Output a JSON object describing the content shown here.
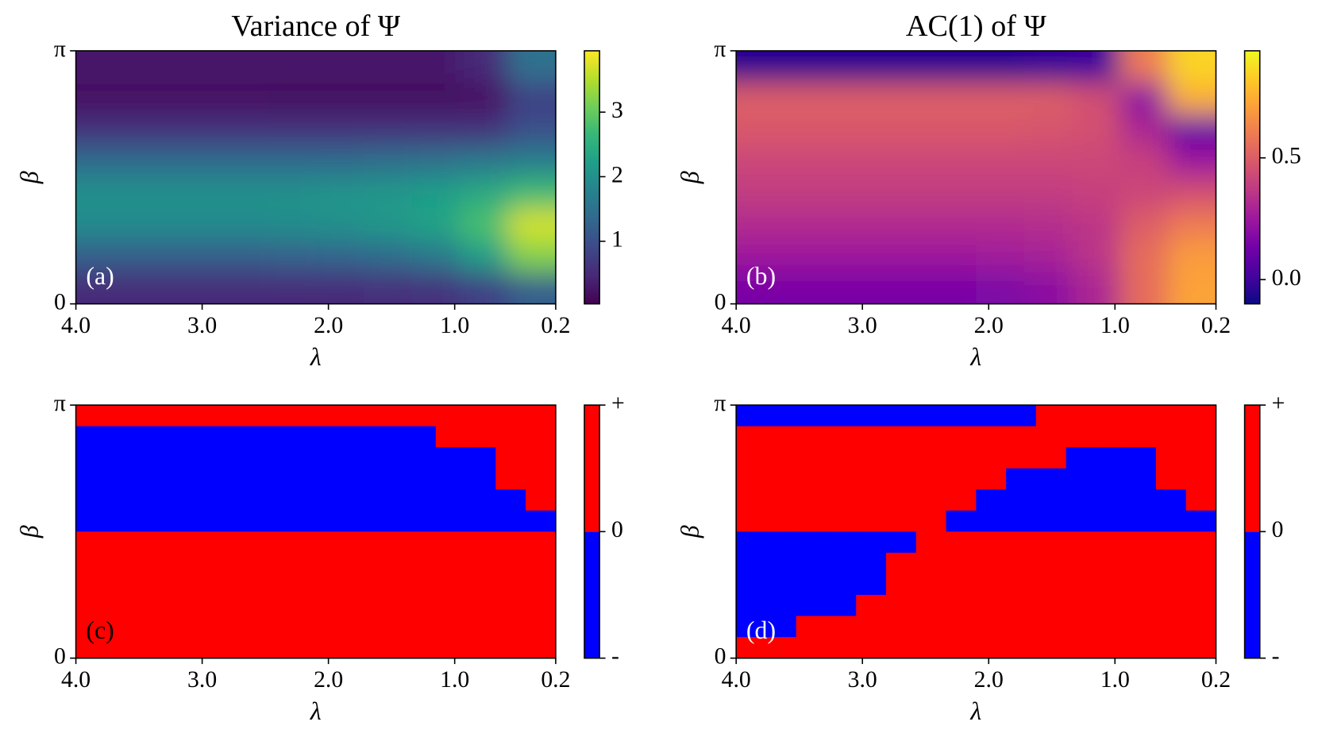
{
  "chart_data": [
    {
      "type": "heatmap",
      "title": "Variance of Ψ",
      "panel_label": "(a)",
      "label_color": "#ffffff",
      "xlabel": "λ",
      "ylabel": "β",
      "xlim": [
        4,
        0.2
      ],
      "xticks": [
        {
          "value": 4,
          "label": "4.0"
        },
        {
          "value": 3,
          "label": "3.0"
        },
        {
          "value": 2,
          "label": "2.0"
        },
        {
          "value": 1,
          "label": "1.0"
        },
        0.2
      ],
      "ylim": [
        0,
        3.14159
      ],
      "yticks": [
        0,
        {
          "value": 3.14159,
          "label": "π"
        }
      ],
      "colors": [
        "#440154",
        "#482878",
        "#3e4989",
        "#31688e",
        "#26828e",
        "#1f9e89",
        "#35b779",
        "#6ece58",
        "#b5de2b",
        "#fde725"
      ],
      "smooth": true,
      "clim": [
        0.03,
        3.95
      ],
      "cticks": [
        1,
        2,
        3
      ],
      "z": [
        [
          0.3,
          0.3,
          0.3,
          0.3,
          0.3,
          0.3,
          0.3,
          0.3,
          0.5,
          1.5
        ],
        [
          0.2,
          0.2,
          0.2,
          0.2,
          0.15,
          0.15,
          0.15,
          0.15,
          0.2,
          0.8
        ],
        [
          0.6,
          0.6,
          0.6,
          0.6,
          0.6,
          0.6,
          0.6,
          0.6,
          0.6,
          1.0
        ],
        [
          1.4,
          1.4,
          1.4,
          1.4,
          1.4,
          1.4,
          1.45,
          1.5,
          1.6,
          1.7
        ],
        [
          2.0,
          2.0,
          2.0,
          2.0,
          2.0,
          2.05,
          2.1,
          2.2,
          2.4,
          2.7
        ],
        [
          1.9,
          1.9,
          1.9,
          1.9,
          1.95,
          2.0,
          2.1,
          2.3,
          2.8,
          3.7
        ],
        [
          1.2,
          1.2,
          1.2,
          1.2,
          1.25,
          1.3,
          1.4,
          1.6,
          2.2,
          3.2
        ],
        [
          0.5,
          0.5,
          0.5,
          0.5,
          0.5,
          0.5,
          0.55,
          0.6,
          0.8,
          1.2
        ]
      ]
    },
    {
      "type": "heatmap",
      "title": "AC(1) of Ψ",
      "panel_label": "(b)",
      "label_color": "#ffffff",
      "xlabel": "λ",
      "ylabel": "β",
      "xlim": [
        4,
        0.2
      ],
      "xticks": [
        {
          "value": 4,
          "label": "4.0"
        },
        {
          "value": 3,
          "label": "3.0"
        },
        {
          "value": 2,
          "label": "2.0"
        },
        {
          "value": 1,
          "label": "1.0"
        },
        0.2
      ],
      "ylim": [
        0,
        3.14159
      ],
      "yticks": [
        0,
        {
          "value": 3.14159,
          "label": "π"
        }
      ],
      "colors": [
        "#0d0887",
        "#46039f",
        "#7201a8",
        "#9c179e",
        "#bd3786",
        "#d8576b",
        "#ed7953",
        "#fb9f3a",
        "#fdca26",
        "#f0f921"
      ],
      "smooth": true,
      "clim": [
        -0.1,
        0.94
      ],
      "cticks": [
        {
          "value": 0,
          "label": "0.0"
        },
        0.5
      ],
      "z": [
        [
          -0.05,
          -0.05,
          -0.05,
          -0.05,
          -0.05,
          -0.05,
          -0.03,
          0.0,
          0.6,
          0.85
        ],
        [
          0.5,
          0.5,
          0.5,
          0.5,
          0.5,
          0.5,
          0.5,
          0.45,
          0.2,
          0.75
        ],
        [
          0.48,
          0.48,
          0.48,
          0.48,
          0.48,
          0.48,
          0.47,
          0.45,
          0.3,
          0.1
        ],
        [
          0.42,
          0.42,
          0.42,
          0.42,
          0.42,
          0.42,
          0.42,
          0.42,
          0.4,
          0.25
        ],
        [
          0.38,
          0.38,
          0.38,
          0.38,
          0.38,
          0.38,
          0.38,
          0.4,
          0.42,
          0.45
        ],
        [
          0.32,
          0.32,
          0.32,
          0.32,
          0.32,
          0.32,
          0.33,
          0.36,
          0.5,
          0.6
        ],
        [
          0.25,
          0.25,
          0.25,
          0.25,
          0.25,
          0.26,
          0.28,
          0.35,
          0.55,
          0.7
        ],
        [
          0.15,
          0.15,
          0.15,
          0.15,
          0.15,
          0.16,
          0.2,
          0.3,
          0.55,
          0.72
        ]
      ]
    },
    {
      "type": "heatmap",
      "panel_label": "(c)",
      "label_color": "#000000",
      "xlabel": "λ",
      "ylabel": "β",
      "xlim": [
        4,
        0.2
      ],
      "xticks": [
        {
          "value": 4,
          "label": "4.0"
        },
        {
          "value": 3,
          "label": "3.0"
        },
        {
          "value": 2,
          "label": "2.0"
        },
        {
          "value": 1,
          "label": "1.0"
        },
        0.2
      ],
      "ylim": [
        0,
        3.14159
      ],
      "yticks": [
        0,
        {
          "value": 3.14159,
          "label": "π"
        }
      ],
      "colors": [
        "#0000ff",
        "#ff0000"
      ],
      "smooth": false,
      "clim": [
        -1,
        1
      ],
      "cticks": [
        {
          "value": -1,
          "label": "-"
        },
        0,
        {
          "value": 1,
          "label": "+"
        }
      ],
      "z": [
        [
          1,
          1,
          1,
          1,
          1,
          1,
          1,
          1,
          1,
          1,
          1,
          1,
          1,
          1,
          1,
          1
        ],
        [
          -1,
          -1,
          -1,
          -1,
          -1,
          -1,
          -1,
          -1,
          -1,
          -1,
          -1,
          -1,
          1,
          1,
          1,
          1
        ],
        [
          -1,
          -1,
          -1,
          -1,
          -1,
          -1,
          -1,
          -1,
          -1,
          -1,
          -1,
          -1,
          -1,
          -1,
          1,
          1
        ],
        [
          -1,
          -1,
          -1,
          -1,
          -1,
          -1,
          -1,
          -1,
          -1,
          -1,
          -1,
          -1,
          -1,
          -1,
          1,
          1
        ],
        [
          -1,
          -1,
          -1,
          -1,
          -1,
          -1,
          -1,
          -1,
          -1,
          -1,
          -1,
          -1,
          -1,
          -1,
          -1,
          1
        ],
        [
          -1,
          -1,
          -1,
          -1,
          -1,
          -1,
          -1,
          -1,
          -1,
          -1,
          -1,
          -1,
          -1,
          -1,
          -1,
          -1
        ],
        [
          1,
          1,
          1,
          1,
          1,
          1,
          1,
          1,
          1,
          1,
          1,
          1,
          1,
          1,
          1,
          1
        ],
        [
          1,
          1,
          1,
          1,
          1,
          1,
          1,
          1,
          1,
          1,
          1,
          1,
          1,
          1,
          1,
          1
        ],
        [
          1,
          1,
          1,
          1,
          1,
          1,
          1,
          1,
          1,
          1,
          1,
          1,
          1,
          1,
          1,
          1
        ],
        [
          1,
          1,
          1,
          1,
          1,
          1,
          1,
          1,
          1,
          1,
          1,
          1,
          1,
          1,
          1,
          1
        ],
        [
          1,
          1,
          1,
          1,
          1,
          1,
          1,
          1,
          1,
          1,
          1,
          1,
          1,
          1,
          1,
          1
        ],
        [
          1,
          1,
          1,
          1,
          1,
          1,
          1,
          1,
          1,
          1,
          1,
          1,
          1,
          1,
          1,
          1
        ]
      ]
    },
    {
      "type": "heatmap",
      "panel_label": "(d)",
      "label_color": "#ffffff",
      "xlabel": "λ",
      "ylabel": "β",
      "xlim": [
        4,
        0.2
      ],
      "xticks": [
        {
          "value": 4,
          "label": "4.0"
        },
        {
          "value": 3,
          "label": "3.0"
        },
        {
          "value": 2,
          "label": "2.0"
        },
        {
          "value": 1,
          "label": "1.0"
        },
        0.2
      ],
      "ylim": [
        0,
        3.14159
      ],
      "yticks": [
        0,
        {
          "value": 3.14159,
          "label": "π"
        }
      ],
      "colors": [
        "#0000ff",
        "#ff0000"
      ],
      "smooth": false,
      "clim": [
        -1,
        1
      ],
      "cticks": [
        {
          "value": -1,
          "label": "-"
        },
        0,
        {
          "value": 1,
          "label": "+"
        }
      ],
      "z": [
        [
          -1,
          -1,
          -1,
          -1,
          -1,
          -1,
          -1,
          -1,
          -1,
          -1,
          1,
          1,
          1,
          1,
          1,
          1
        ],
        [
          1,
          1,
          1,
          1,
          1,
          1,
          1,
          1,
          1,
          1,
          1,
          1,
          1,
          1,
          1,
          1
        ],
        [
          1,
          1,
          1,
          1,
          1,
          1,
          1,
          1,
          1,
          1,
          1,
          -1,
          -1,
          -1,
          1,
          1
        ],
        [
          1,
          1,
          1,
          1,
          1,
          1,
          1,
          1,
          1,
          -1,
          -1,
          -1,
          -1,
          -1,
          1,
          1
        ],
        [
          1,
          1,
          1,
          1,
          1,
          1,
          1,
          1,
          -1,
          -1,
          -1,
          -1,
          -1,
          -1,
          -1,
          1
        ],
        [
          1,
          1,
          1,
          1,
          1,
          1,
          1,
          -1,
          -1,
          -1,
          -1,
          -1,
          -1,
          -1,
          -1,
          -1
        ],
        [
          -1,
          -1,
          -1,
          -1,
          -1,
          -1,
          1,
          1,
          1,
          1,
          1,
          1,
          1,
          1,
          1,
          1
        ],
        [
          -1,
          -1,
          -1,
          -1,
          -1,
          1,
          1,
          1,
          1,
          1,
          1,
          1,
          1,
          1,
          1,
          1
        ],
        [
          -1,
          -1,
          -1,
          -1,
          -1,
          1,
          1,
          1,
          1,
          1,
          1,
          1,
          1,
          1,
          1,
          1
        ],
        [
          -1,
          -1,
          -1,
          -1,
          1,
          1,
          1,
          1,
          1,
          1,
          1,
          1,
          1,
          1,
          1,
          1
        ],
        [
          -1,
          -1,
          1,
          1,
          1,
          1,
          1,
          1,
          1,
          1,
          1,
          1,
          1,
          1,
          1,
          1
        ],
        [
          1,
          1,
          1,
          1,
          1,
          1,
          1,
          1,
          1,
          1,
          1,
          1,
          1,
          1,
          1,
          1
        ]
      ]
    }
  ]
}
